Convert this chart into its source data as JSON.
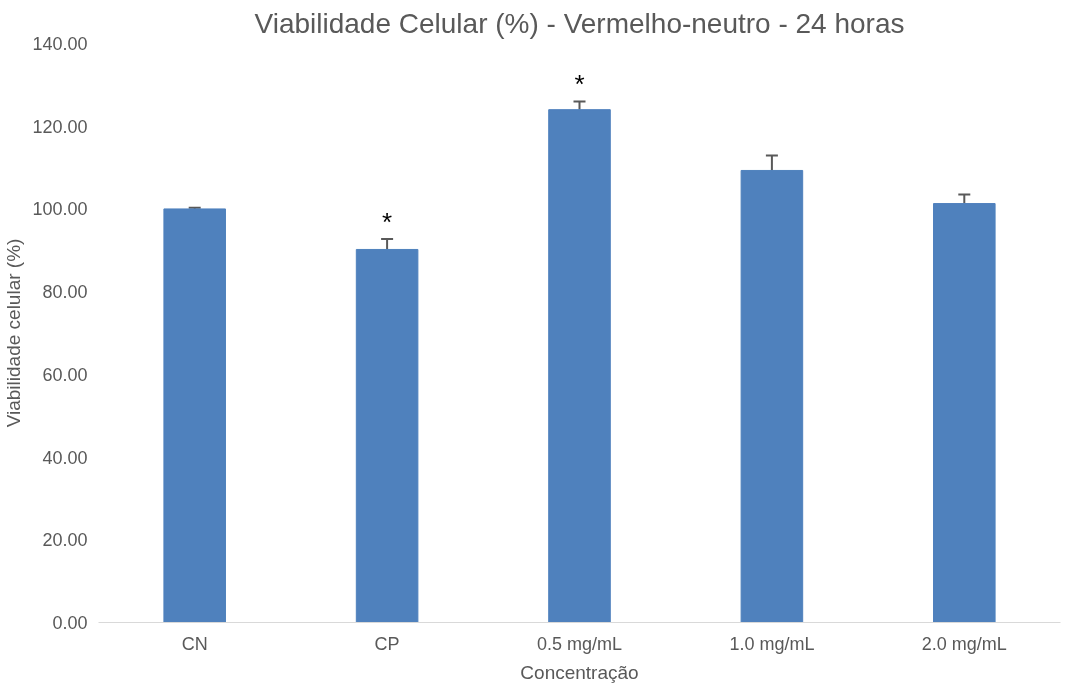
{
  "chart_data": {
    "type": "bar",
    "title": "Viabilidade Celular (%) - Vermelho-neutro - 24 horas",
    "xlabel": "Concentração",
    "ylabel": "Viabilidade celular (%)",
    "categories": [
      "CN",
      "CP",
      "0.5 mg/mL",
      "1.0 mg/mL",
      "2.0 mg/mL"
    ],
    "values": [
      100.0,
      90.2,
      124.0,
      109.3,
      101.3
    ],
    "errors": [
      [
        100.0,
        100.3
      ],
      [
        90.2,
        92.7
      ],
      [
        124.0,
        126.0
      ],
      [
        109.3,
        112.9
      ],
      [
        101.3,
        103.5
      ]
    ],
    "color": "#4f81bd",
    "ylim": [
      0,
      140
    ],
    "yticks": [
      {
        "value": 0,
        "label": "0.00"
      },
      {
        "value": 20,
        "label": "20.00"
      },
      {
        "value": 40,
        "label": "40.00"
      },
      {
        "value": 60,
        "label": "60.00"
      },
      {
        "value": 80,
        "label": "80.00"
      },
      {
        "value": 100,
        "label": "100.00"
      },
      {
        "value": 120,
        "label": "120.00"
      },
      {
        "value": 140,
        "label": "140.00"
      }
    ],
    "grid": false,
    "annotations": [
      {
        "text": "*",
        "x": "CP",
        "y": 92.7
      },
      {
        "text": "*",
        "x": "0.5 mg/mL",
        "y": 126.0
      }
    ]
  }
}
